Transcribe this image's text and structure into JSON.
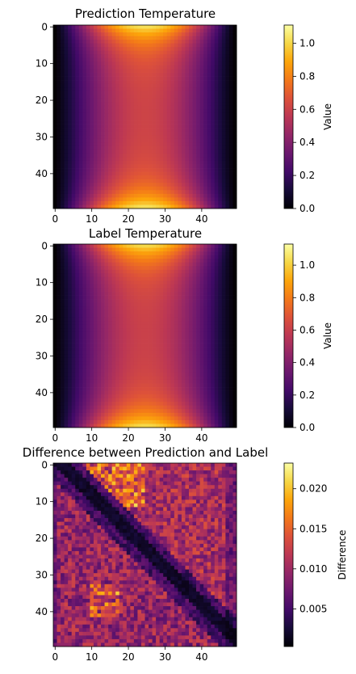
{
  "chart_data": [
    {
      "type": "heatmap",
      "title": "Prediction Temperature",
      "grid_size": [
        50,
        50
      ],
      "field": "temperature",
      "xticks": [
        0,
        10,
        20,
        30,
        40
      ],
      "yticks": [
        0,
        10,
        20,
        30,
        40
      ],
      "colorbar": {
        "label": "Value",
        "range": [
          0.0,
          1.11
        ],
        "ticks": [
          "0.0",
          "0.2",
          "0.4",
          "0.6",
          "0.8",
          "1.0"
        ],
        "tick_values": [
          0.0,
          0.2,
          0.4,
          0.6,
          0.8,
          1.0
        ]
      },
      "colormap": "inferno"
    },
    {
      "type": "heatmap",
      "title": "Label Temperature",
      "grid_size": [
        50,
        50
      ],
      "field": "temperature",
      "xticks": [
        0,
        10,
        20,
        30,
        40
      ],
      "yticks": [
        0,
        10,
        20,
        30,
        40
      ],
      "colorbar": {
        "label": "Value",
        "range": [
          0.0,
          1.13
        ],
        "ticks": [
          "0.0",
          "0.2",
          "0.4",
          "0.6",
          "0.8",
          "1.0"
        ],
        "tick_values": [
          0.0,
          0.2,
          0.4,
          0.6,
          0.8,
          1.0
        ]
      },
      "colormap": "inferno"
    },
    {
      "type": "heatmap",
      "title": "Difference between Prediction and Label",
      "grid_size": [
        50,
        50
      ],
      "field": "difference",
      "xticks": [
        0,
        10,
        20,
        30,
        40
      ],
      "yticks": [
        0,
        10,
        20,
        30,
        40
      ],
      "colorbar": {
        "label": "Difference",
        "range": [
          0.0003,
          0.0232
        ],
        "ticks": [
          "0.005",
          "0.010",
          "0.015",
          "0.020"
        ],
        "tick_values": [
          0.005,
          0.01,
          0.015,
          0.02
        ]
      },
      "colormap": "inferno"
    }
  ]
}
